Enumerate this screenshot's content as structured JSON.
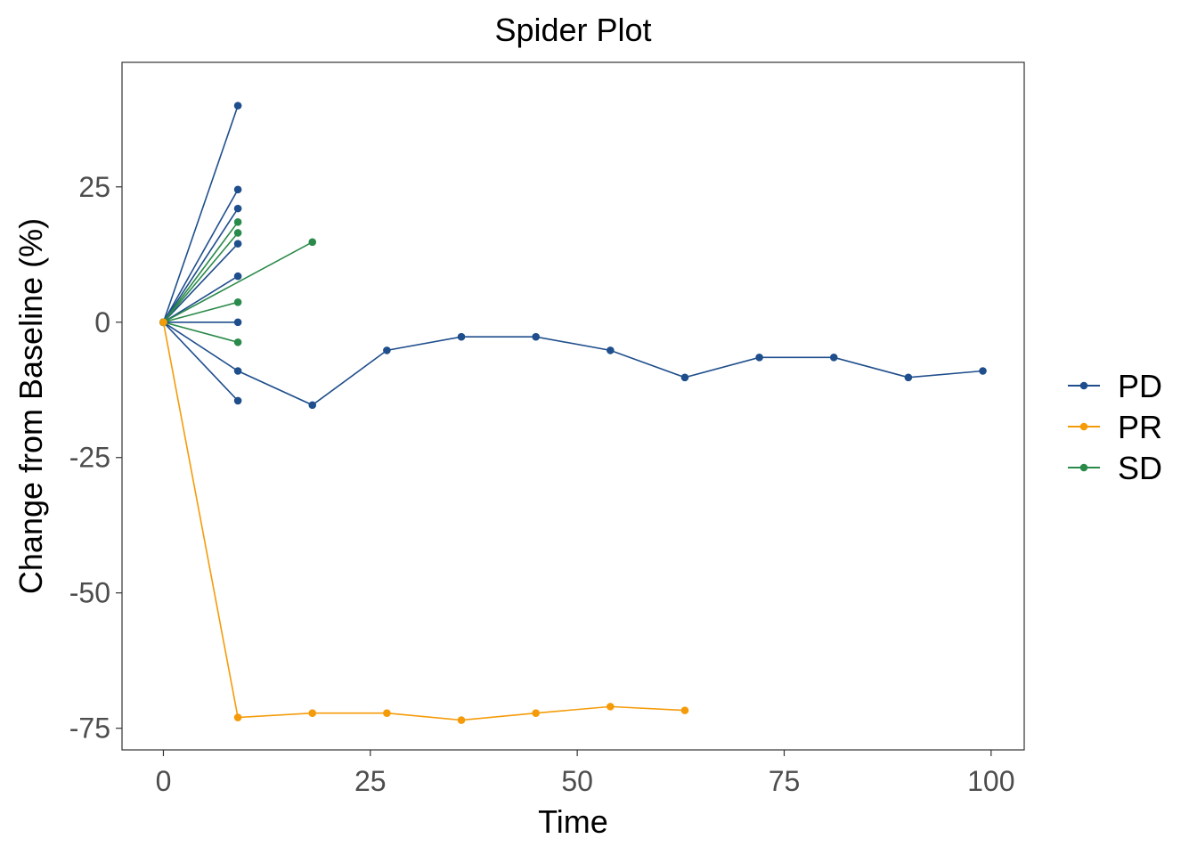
{
  "chart_data": {
    "type": "line",
    "title": "Spider Plot",
    "xlabel": "Time",
    "ylabel": "Change from Baseline (%)",
    "xlim": [
      -5,
      104
    ],
    "ylim": [
      -79,
      48
    ],
    "xticks": [
      0,
      25,
      50,
      75,
      100
    ],
    "yticks": [
      25,
      0,
      -25,
      -50,
      -75
    ],
    "grid": false,
    "legend_position": "right",
    "legend": [
      {
        "label": "PD",
        "color": "#1f4e8c"
      },
      {
        "label": "PR",
        "color": "#f59b0a"
      },
      {
        "label": "SD",
        "color": "#2a8a4a"
      }
    ],
    "series": [
      {
        "group": "PD",
        "color": "#1f4e8c",
        "points": [
          [
            0,
            0
          ],
          [
            9,
            40
          ]
        ]
      },
      {
        "group": "PD",
        "color": "#1f4e8c",
        "points": [
          [
            0,
            0
          ],
          [
            9,
            24.5
          ]
        ]
      },
      {
        "group": "PD",
        "color": "#1f4e8c",
        "points": [
          [
            0,
            0
          ],
          [
            9,
            21
          ]
        ]
      },
      {
        "group": "PD",
        "color": "#1f4e8c",
        "points": [
          [
            0,
            0
          ],
          [
            9,
            14.5
          ]
        ]
      },
      {
        "group": "PD",
        "color": "#1f4e8c",
        "points": [
          [
            0,
            0
          ],
          [
            9,
            8.5
          ]
        ]
      },
      {
        "group": "PD",
        "color": "#1f4e8c",
        "points": [
          [
            0,
            0
          ],
          [
            9,
            0
          ]
        ]
      },
      {
        "group": "PD",
        "color": "#1f4e8c",
        "points": [
          [
            0,
            0
          ],
          [
            9,
            -14.5
          ]
        ]
      },
      {
        "group": "PD",
        "color": "#1f4e8c",
        "points": [
          [
            0,
            0
          ],
          [
            9,
            -9
          ],
          [
            18,
            -15.3
          ],
          [
            27,
            -5.2
          ],
          [
            36,
            -2.7
          ],
          [
            45,
            -2.7
          ],
          [
            54,
            -5.2
          ],
          [
            63,
            -10.2
          ],
          [
            72,
            -6.5
          ],
          [
            81,
            -6.5
          ],
          [
            90,
            -10.2
          ],
          [
            99,
            -9
          ]
        ]
      },
      {
        "group": "SD",
        "color": "#2a8a4a",
        "points": [
          [
            0,
            0
          ],
          [
            9,
            18.5
          ]
        ]
      },
      {
        "group": "SD",
        "color": "#2a8a4a",
        "points": [
          [
            0,
            0
          ],
          [
            9,
            16.5
          ]
        ]
      },
      {
        "group": "SD",
        "color": "#2a8a4a",
        "points": [
          [
            0,
            0
          ],
          [
            18,
            14.8
          ]
        ]
      },
      {
        "group": "SD",
        "color": "#2a8a4a",
        "points": [
          [
            0,
            0
          ],
          [
            9,
            3.7
          ]
        ]
      },
      {
        "group": "SD",
        "color": "#2a8a4a",
        "points": [
          [
            0,
            0
          ],
          [
            9,
            -3.7
          ]
        ]
      },
      {
        "group": "PR",
        "color": "#f59b0a",
        "points": [
          [
            0,
            0
          ],
          [
            9,
            -73
          ],
          [
            18,
            -72.2
          ],
          [
            27,
            -72.2
          ],
          [
            36,
            -73.5
          ],
          [
            45,
            -72.2
          ],
          [
            54,
            -71
          ],
          [
            63,
            -71.7
          ]
        ]
      }
    ]
  }
}
